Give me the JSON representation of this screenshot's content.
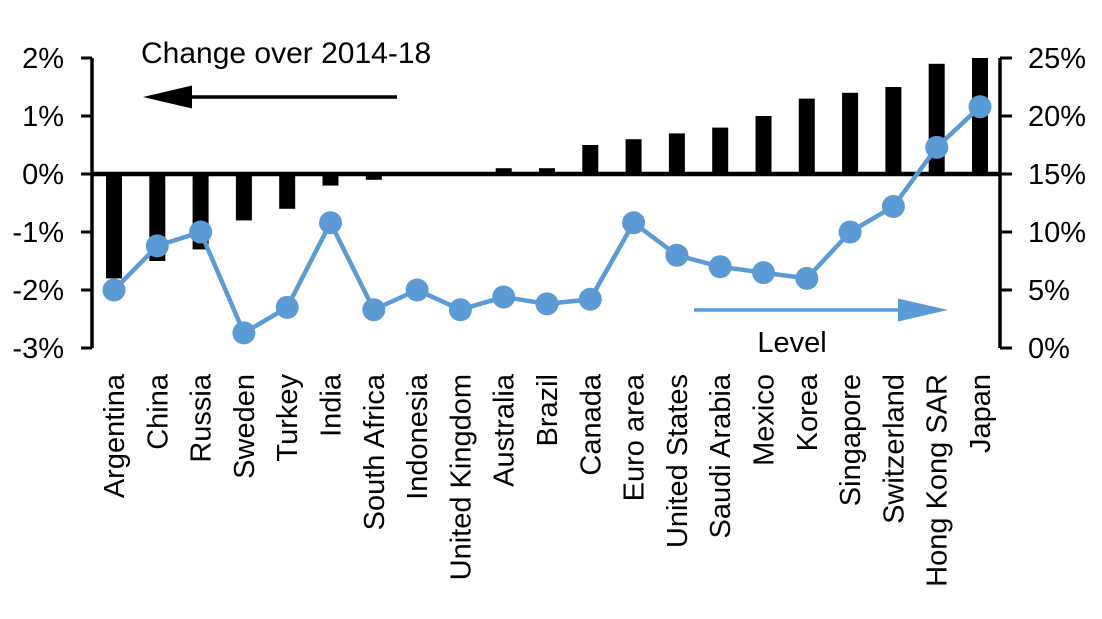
{
  "page": {
    "background": "#ffffff"
  },
  "chart_data": {
    "type": "bar+line",
    "categories": [
      "Argentina",
      "China",
      "Russia",
      "Sweden",
      "Turkey",
      "India",
      "South Africa",
      "Indonesia",
      "United Kingdom",
      "Australia",
      "Brazil",
      "Canada",
      "Euro area",
      "United States",
      "Saudi Arabia",
      "Mexico",
      "Korea",
      "Singapore",
      "Switzerland",
      "Hong Kong SAR",
      "Japan"
    ],
    "series": [
      {
        "name": "Change over 2014-18",
        "type": "bar",
        "axis": "left",
        "unit": "%",
        "values": [
          -1.8,
          -1.5,
          -1.3,
          -0.8,
          -0.6,
          -0.2,
          -0.1,
          0,
          0,
          0.1,
          0.1,
          0.5,
          0.6,
          0.7,
          0.8,
          1.0,
          1.3,
          1.4,
          1.5,
          1.9,
          2.0
        ]
      },
      {
        "name": "Level",
        "type": "line",
        "axis": "right",
        "unit": "%",
        "values": [
          5.0,
          8.8,
          10.0,
          1.3,
          3.5,
          10.8,
          3.3,
          5.0,
          3.3,
          4.4,
          3.8,
          4.2,
          10.8,
          8.0,
          7.0,
          6.5,
          6.0,
          10.0,
          12.2,
          17.3,
          20.8
        ]
      }
    ],
    "left_axis": {
      "min": -3,
      "max": 2,
      "tick_values": [
        2,
        1,
        0,
        -1,
        -2,
        -3
      ],
      "ticks": [
        "2%",
        "1%",
        "0%",
        "-1%",
        "-2%",
        "-3%"
      ]
    },
    "right_axis": {
      "min": 0,
      "max": 25,
      "tick_values": [
        25,
        20,
        15,
        10,
        5,
        0
      ],
      "ticks": [
        "25%",
        "20%",
        "15%",
        "10%",
        "5%",
        "0%"
      ]
    },
    "annotations": [
      {
        "text": "Change over 2014-18",
        "arrow_direction": "left",
        "color": "#000000"
      },
      {
        "text": "Level",
        "arrow_direction": "right",
        "color": "#5B9BD5"
      }
    ],
    "grid": false,
    "legend_position": "in-plot-annotations",
    "colors": {
      "bar": "#000000",
      "line": "#5B9BD5",
      "axis": "#000000"
    }
  }
}
